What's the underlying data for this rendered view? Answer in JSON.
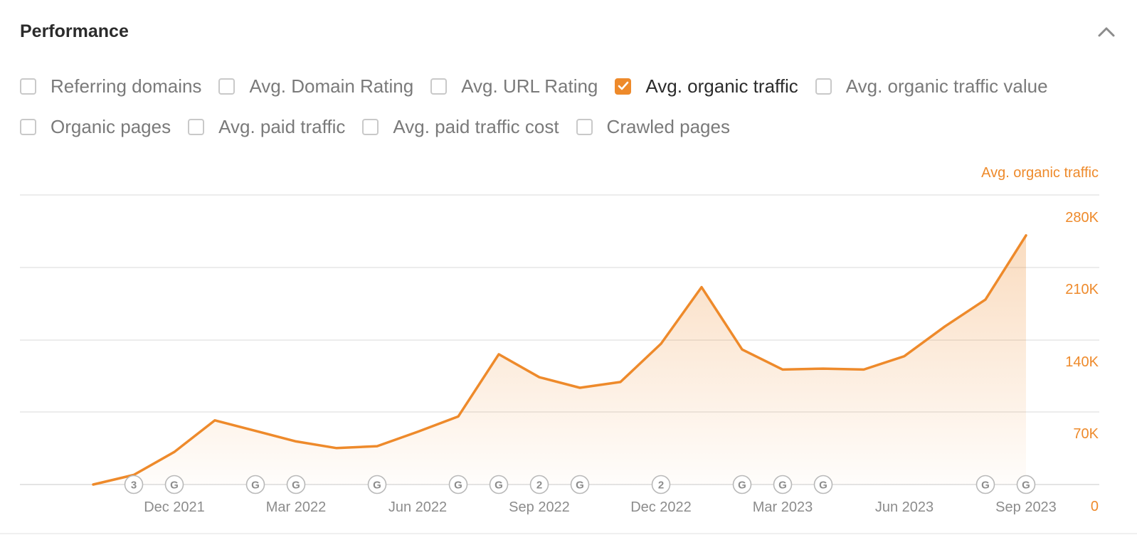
{
  "header": {
    "title": "Performance"
  },
  "icons": {
    "collapse": "chevron-up-icon",
    "check": "check-icon"
  },
  "colors": {
    "accent": "#ee8a2b",
    "grid": "#e6e6e6",
    "muted": "#8c8c8c"
  },
  "filters": {
    "row1": [
      {
        "label": "Referring domains",
        "checked": false
      },
      {
        "label": "Avg. Domain Rating",
        "checked": false
      },
      {
        "label": "Avg. URL Rating",
        "checked": false
      },
      {
        "label": "Avg. organic traffic",
        "checked": true
      },
      {
        "label": "Avg. organic traffic value",
        "checked": false
      }
    ],
    "row2": [
      {
        "label": "Organic pages",
        "checked": false
      },
      {
        "label": "Avg. paid traffic",
        "checked": false
      },
      {
        "label": "Avg. paid traffic cost",
        "checked": false
      },
      {
        "label": "Crawled pages",
        "checked": false
      }
    ]
  },
  "chart_data": {
    "type": "area",
    "series": [
      {
        "name": "Avg. organic traffic",
        "x": [
          "2021-10-01",
          "2021-11-01",
          "2021-12-01",
          "2022-01-01",
          "2022-02-01",
          "2022-03-01",
          "2022-04-01",
          "2022-05-01",
          "2022-06-01",
          "2022-07-01",
          "2022-08-01",
          "2022-09-01",
          "2022-10-01",
          "2022-11-01",
          "2022-12-01",
          "2023-01-01",
          "2023-02-01",
          "2023-03-01",
          "2023-04-01",
          "2023-05-01",
          "2023-06-01",
          "2023-07-01",
          "2023-08-01",
          "2023-09-01"
        ],
        "values": [
          0,
          10000,
          34000,
          67000,
          56000,
          45000,
          38000,
          40000,
          55000,
          71000,
          136000,
          112000,
          101000,
          107000,
          147000,
          206000,
          141000,
          120000,
          121000,
          120000,
          134000,
          165000,
          193000,
          260000
        ]
      }
    ],
    "y_axis": {
      "label": "Avg. organic traffic",
      "side": "right",
      "ylim": [
        0,
        280000
      ],
      "ticks": [
        "0",
        "70K",
        "140K",
        "210K",
        "280K"
      ]
    },
    "x_ticks": [
      "Dec 2021",
      "Mar 2022",
      "Jun 2022",
      "Sep 2022",
      "Dec 2022",
      "Mar 2023",
      "Jun 2023",
      "Sep 2023"
    ],
    "x_tick_dates": [
      "2021-12-01",
      "2022-03-01",
      "2022-06-01",
      "2022-09-01",
      "2022-12-01",
      "2023-03-01",
      "2023-06-01",
      "2023-09-01"
    ],
    "grid": true,
    "markers": [
      {
        "date": "2021-11-01",
        "label": "3"
      },
      {
        "date": "2021-12-01",
        "label": "G"
      },
      {
        "date": "2022-02-01",
        "label": "G"
      },
      {
        "date": "2022-03-01",
        "label": "G"
      },
      {
        "date": "2022-05-01",
        "label": "G"
      },
      {
        "date": "2022-07-01",
        "label": "G"
      },
      {
        "date": "2022-08-01",
        "label": "G"
      },
      {
        "date": "2022-09-01",
        "label": "2"
      },
      {
        "date": "2022-10-01",
        "label": "G"
      },
      {
        "date": "2022-12-01",
        "label": "2"
      },
      {
        "date": "2023-02-01",
        "label": "G"
      },
      {
        "date": "2023-03-01",
        "label": "G"
      },
      {
        "date": "2023-04-01",
        "label": "G"
      },
      {
        "date": "2023-08-01",
        "label": "G"
      },
      {
        "date": "2023-09-01",
        "label": "G"
      }
    ]
  }
}
